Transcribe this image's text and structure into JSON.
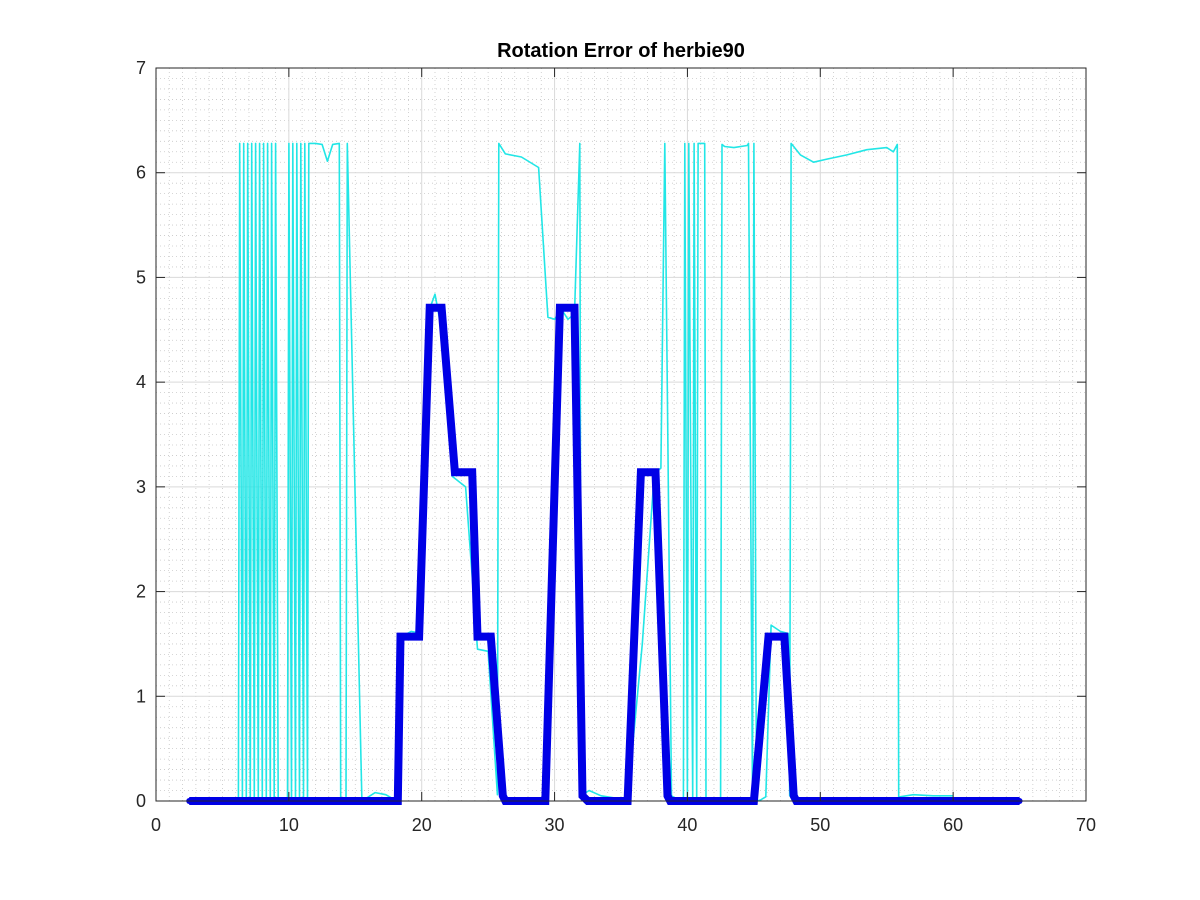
{
  "chart_data": {
    "type": "line",
    "title": "Rotation Error of herbie90",
    "xlabel": "",
    "ylabel": "",
    "xlim": [
      0,
      70
    ],
    "ylim": [
      0,
      7
    ],
    "xticks": [
      "0",
      "10",
      "20",
      "30",
      "40",
      "50",
      "60",
      "70"
    ],
    "yticks": [
      "0",
      "1",
      "2",
      "3",
      "4",
      "5",
      "6",
      "7"
    ],
    "grid": true,
    "minor_grid": true,
    "legend": "none",
    "colors": {
      "thick_series": "#0000e6",
      "thin_series": "#22e6e6",
      "axis": "#262626",
      "grid": "#d9d9d9",
      "minor_grid": "#c8c8c8"
    },
    "series": [
      {
        "style": "thick",
        "x": [
          2.5,
          18.2,
          18.4,
          19.8,
          20.6,
          21.5,
          22.5,
          23.8,
          24.2,
          25.2,
          26.1,
          26.3,
          29.3,
          30.4,
          31.5,
          32.1,
          32.5,
          35.5,
          36.5,
          37.6,
          38.5,
          38.7,
          45.0,
          46.1,
          47.3,
          48.0,
          48.2,
          65.0
        ],
        "y": [
          0,
          0,
          1.57,
          1.57,
          4.71,
          4.71,
          3.14,
          3.14,
          1.57,
          1.57,
          0.05,
          0,
          0,
          4.71,
          4.71,
          0.05,
          0,
          0,
          3.14,
          3.14,
          0.05,
          0,
          0,
          1.57,
          1.57,
          0.05,
          0,
          0
        ]
      },
      {
        "style": "thin",
        "x": [
          2.5,
          6.2,
          6.3,
          6.5,
          6.6,
          6.8,
          6.9,
          7.1,
          7.2,
          7.4,
          7.5,
          7.7,
          7.8,
          8.0,
          8.1,
          8.3,
          8.4,
          8.6,
          8.7,
          8.9,
          9.0,
          9.2,
          9.3,
          9.9,
          10.0,
          10.2,
          10.3,
          10.5,
          10.6,
          10.8,
          10.9,
          11.1,
          11.2,
          11.4,
          11.5,
          12.0,
          12.5,
          12.9,
          13.3,
          13.8,
          13.9,
          14.3,
          14.4,
          15.5,
          16.5,
          17.3,
          18.0,
          18.5,
          19.2,
          20.0,
          20.6,
          21.0,
          21.5,
          22.3,
          23.3,
          24.2,
          25.0,
          25.7,
          25.8,
          26.3,
          27.5,
          28.8,
          29.5,
          30.0,
          30.5,
          31.0,
          31.5,
          31.9,
          32.0,
          32.6,
          33.5,
          34.5,
          35.5,
          36.6,
          37.5,
          38.0,
          38.3,
          38.8,
          39.2,
          39.7,
          39.8,
          40.0,
          40.1,
          40.4,
          40.5,
          40.7,
          40.8,
          41.3,
          41.4,
          42.5,
          42.6,
          42.8,
          43.5,
          44.5,
          44.6,
          44.9,
          45.0,
          45.2,
          45.5,
          45.9,
          46.3,
          47.0,
          47.6,
          47.7,
          47.8,
          48.5,
          49.5,
          50.5,
          52.0,
          53.5,
          55.0,
          55.5,
          55.8,
          55.9,
          56.0,
          57.0,
          58.5,
          60.0
        ],
        "y": [
          0,
          0,
          6.28,
          0,
          6.28,
          0,
          6.28,
          0,
          6.28,
          0,
          6.28,
          0,
          6.28,
          0,
          6.28,
          0,
          6.28,
          0,
          6.28,
          0,
          6.28,
          0,
          0,
          0,
          6.28,
          0,
          6.28,
          0,
          6.28,
          0,
          6.28,
          0,
          6.28,
          0,
          6.28,
          6.28,
          6.27,
          6.11,
          6.27,
          6.28,
          0,
          0,
          6.28,
          0,
          0.08,
          0.06,
          0.01,
          1.57,
          1.62,
          1.6,
          4.7,
          4.84,
          4.5,
          3.1,
          3.0,
          1.45,
          1.43,
          0.06,
          6.28,
          6.18,
          6.15,
          6.05,
          4.62,
          4.6,
          4.7,
          4.6,
          4.65,
          6.28,
          0.05,
          0.1,
          0.05,
          0.03,
          0.02,
          1.5,
          3.12,
          3.18,
          6.28,
          0.05,
          0.02,
          0.02,
          6.28,
          0.02,
          6.28,
          0.02,
          6.28,
          0.02,
          6.28,
          6.28,
          0.02,
          0.02,
          6.27,
          6.25,
          6.24,
          6.26,
          6.28,
          0.02,
          6.28,
          0,
          0.01,
          0.04,
          1.68,
          1.62,
          1.6,
          0.05,
          6.28,
          6.17,
          6.1,
          6.13,
          6.17,
          6.22,
          6.24,
          6.2,
          6.27,
          0.02,
          0.04,
          0.06,
          0.05,
          0.05
        ]
      }
    ]
  }
}
